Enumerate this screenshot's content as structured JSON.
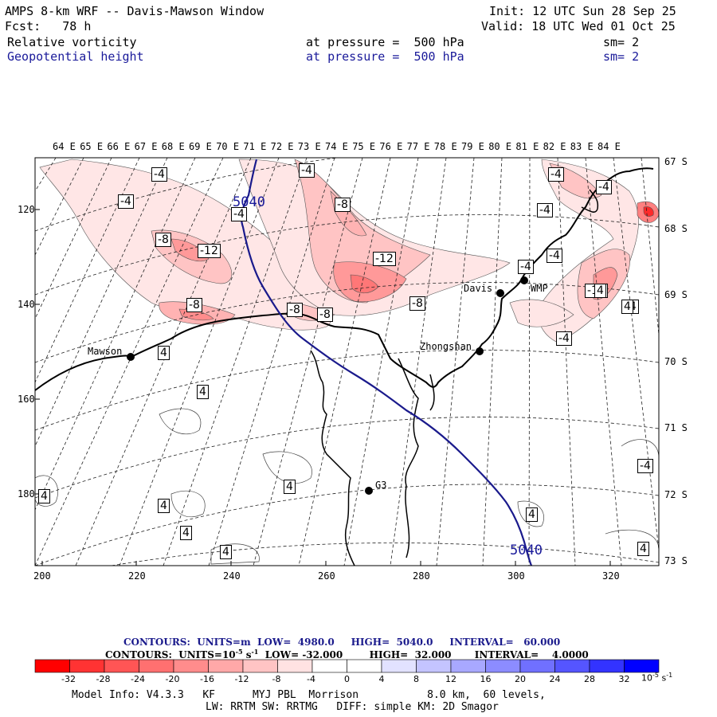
{
  "header": {
    "title": "AMPS 8-km WRF -- Davis-Mawson Window",
    "init": "Init: 12 UTC Sun 28 Sep 25",
    "fcst": "Fcst:   78 h",
    "valid": "Valid: 18 UTC Wed 01 Oct 25",
    "field1": "Relative vorticity",
    "field1_level": "at pressure =  500 hPa",
    "field1_sm": "sm= 2",
    "field2": "Geopotential height",
    "field2_level": "at pressure =  500 hPa",
    "field2_sm": "sm= 2"
  },
  "map": {
    "lon_labels": [
      "64 E",
      "65 E",
      "66 E",
      "67 E",
      "68 E",
      "69 E",
      "70 E",
      "71 E",
      "72 E",
      "73 E",
      "74 E",
      "75 E",
      "76 E",
      "77 E",
      "78 E",
      "79 E",
      "80 E",
      "81 E",
      "82 E",
      "83 E",
      "84 E"
    ],
    "lat_labels": [
      "67 S",
      "68 S",
      "69 S",
      "70 S",
      "71 S",
      "72 S",
      "73 S"
    ],
    "y_labels": [
      "120",
      "140",
      "160",
      "180"
    ],
    "x_labels": [
      "200",
      "220",
      "240",
      "260",
      "280",
      "300",
      "320"
    ],
    "stations": [
      {
        "name": "Mawson"
      },
      {
        "name": "Davis"
      },
      {
        "name": "WMP"
      },
      {
        "name": "Zhongshan"
      },
      {
        "name": "G3"
      }
    ],
    "height_contour_labels": [
      "5040",
      "5040"
    ],
    "vort_labels": [
      "-4",
      "-4",
      "-4",
      "-4",
      "-4",
      "-8",
      "-8",
      "-8",
      "-12",
      "-8",
      "-8",
      "-12",
      "-12",
      "-4",
      "-4",
      "-4",
      "-4",
      "-4",
      "-4",
      "4",
      "4",
      "4",
      "4",
      "4",
      "4",
      "4",
      "-4",
      "4",
      "4",
      "4",
      "4",
      "-8"
    ],
    "colors": {
      "neg_fill": [
        "#ffe6e6",
        "#ffcccc",
        "#ffb3b3",
        "#ff9999",
        "#ff8080",
        "#ff6666",
        "#ff4d4d",
        "#ff0000"
      ],
      "pos_fill": [
        "#e6e6ff",
        "#ccccff",
        "#b3b3ff",
        "#9999ff",
        "#8080ff",
        "#6666ff",
        "#4d4dff",
        "#0000ff"
      ],
      "height_line": "#1a1a8c",
      "coast": "#000000"
    }
  },
  "contours_info": {
    "line1_label": "CONTOURS:  UNITS=m  LOW=  4980.0     HIGH=  5040.0     INTERVAL=   60.000",
    "line2_label": "CONTOURS:  UNITS=10",
    "line2_exp": "-5",
    "line2_rest": " s",
    "line2_exp2": "-1",
    "line2_tail": "  LOW= -32.000        HIGH=  32.000       INTERVAL=    4.0000"
  },
  "colorbar": {
    "colors": [
      "#ff0000",
      "#ff3333",
      "#ff5555",
      "#ff7070",
      "#ff8c8c",
      "#ffa8a8",
      "#ffc4c4",
      "#ffe2e2",
      "#ffffff",
      "#ffffff",
      "#e2e2ff",
      "#c4c4ff",
      "#a8a8ff",
      "#8c8cff",
      "#7070ff",
      "#5555ff",
      "#3333ff",
      "#0000ff"
    ],
    "ticks": [
      "-32",
      "-28",
      "-24",
      "-20",
      "-16",
      "-12",
      "-8",
      "-4",
      "0",
      "4",
      "8",
      "12",
      "16",
      "20",
      "24",
      "28",
      "32"
    ],
    "unit": "10",
    "unit_exp": "-5",
    "unit_s": "s",
    "unit_s_exp": "-1"
  },
  "footer": {
    "line1": "Model Info: V4.3.3   KF      MYJ PBL  Morrison           8.0 km,  60 levels,",
    "line2": "LW: RRTM SW: RRTMG   DIFF: simple KM: 2D Smagor"
  }
}
